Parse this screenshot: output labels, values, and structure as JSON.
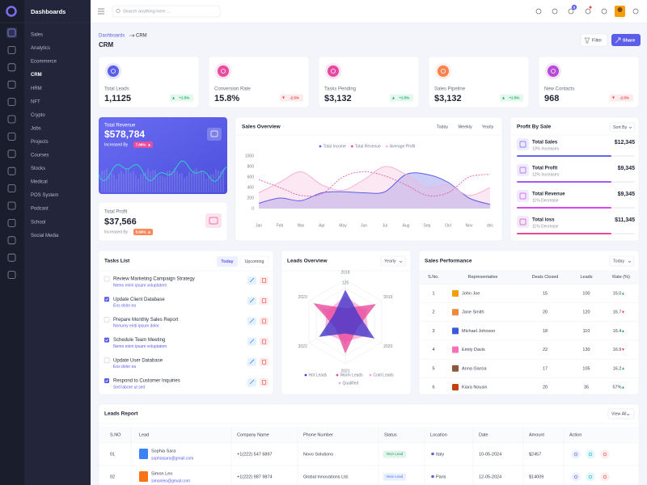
{
  "sidebar": {
    "title": "Dashboards",
    "items": [
      "Sales",
      "Analytics",
      "Ecommerce",
      "CRM",
      "HRM",
      "NFT",
      "Crypto",
      "Jobs",
      "Projects",
      "Courses",
      "Stocks",
      "Medical",
      "POS System",
      "Podcast",
      "School",
      "Social Media"
    ],
    "active": 3
  },
  "header": {
    "search_placeholder": "Search anything here ...",
    "cart_count": 5
  },
  "page": {
    "breadcrumb": [
      "Dashboards",
      "CRM"
    ],
    "title": "CRM",
    "filter": "Filter",
    "share": "Share"
  },
  "stats": [
    {
      "label": "Total Leads",
      "value": "1,1125",
      "change": "+2.5%",
      "trend": "up",
      "color": "#5b5ee8"
    },
    {
      "label": "Conversion Rate",
      "value": "15.8%",
      "change": "-2.5%",
      "trend": "down",
      "color": "#e84c9c"
    },
    {
      "label": "Tasks Pending",
      "value": "$3,132",
      "change": "+2.5%",
      "trend": "up",
      "color": "#e64aa0"
    },
    {
      "label": "Sales Pipeline",
      "value": "$3,132",
      "change": "+2.5%",
      "trend": "up",
      "color": "#f7834f"
    },
    {
      "label": "New Contacts",
      "value": "968",
      "change": "-2.5%",
      "trend": "down",
      "color": "#b84ad8"
    }
  ],
  "total_revenue": {
    "title": "Total Revenue",
    "value": "$578,784",
    "note": "Increased By",
    "badge": "7.66%"
  },
  "total_profit": {
    "title": "Total Profit",
    "value": "$37,566",
    "note": "Increased By",
    "badge": "5.66%"
  },
  "sales_overview": {
    "title": "Sales Overview",
    "tabs": [
      "Today",
      "Weekly",
      "Yearly"
    ],
    "chart": {
      "type": "line",
      "categories": [
        "Jan",
        "Feb",
        "Mar",
        "Apr",
        "May",
        "Jun",
        "Jul",
        "Aug",
        "Sep",
        "Oct",
        "Nov",
        "dec"
      ],
      "series": [
        {
          "name": "Total Income",
          "color": "#5b5ee8",
          "line_style": "solid",
          "area": true,
          "values": [
            100,
            200,
            150,
            300,
            320,
            300,
            320,
            650,
            650,
            500,
            200,
            80
          ]
        },
        {
          "name": "Total Revenue",
          "color": "#e84c9c",
          "line_style": "dashed",
          "area": false,
          "values": [
            550,
            400,
            250,
            280,
            600,
            700,
            620,
            450,
            250,
            300,
            600,
            650
          ]
        },
        {
          "name": "Average Profit",
          "color": "#f5b3d5",
          "line_style": "solid",
          "area": true,
          "values": [
            300,
            500,
            700,
            450,
            350,
            550,
            800,
            650,
            400,
            450,
            250,
            400
          ]
        }
      ],
      "ylim": [
        0,
        1000
      ],
      "yticks": [
        0,
        200,
        400,
        600,
        800,
        1000
      ]
    }
  },
  "profit_by_sale": {
    "title": "Profit By Sale",
    "sort": "Sort By",
    "items": [
      {
        "label": "Total Sales",
        "sub": "10% Increases",
        "value": "$12,345",
        "color": "#6366f1"
      },
      {
        "label": "Total Profit",
        "sub": "12% Increases",
        "value": "$9,345",
        "color": "#a855f7"
      },
      {
        "label": "Total Revenue",
        "sub": "11% Decrease",
        "value": "$9,345",
        "color": "#d946ef"
      },
      {
        "label": "Total loss",
        "sub": "11% Decrease",
        "value": "$11,345",
        "color": "#ec4899"
      }
    ]
  },
  "tasks": {
    "title": "Tasks List",
    "tabs": [
      "Today",
      "Upcoming"
    ],
    "active_tab": 0,
    "items": [
      {
        "title": "Review Marketing Campaign Strategy",
        "sub": "Nemo enim ipsam voluptatem",
        "done": false
      },
      {
        "title": "Update Client Database",
        "sub": "Eos dolor ea",
        "done": true
      },
      {
        "title": "Prepare Monthly Sales Report",
        "sub": "Nonumy eirdi ipsum dolor",
        "done": false
      },
      {
        "title": "Schedule Team Meeting",
        "sub": "Nemo enim ipsam voluptatem",
        "done": true
      },
      {
        "title": "Update User Database",
        "sub": "Eos dolor ea",
        "done": false
      },
      {
        "title": "Respond to Customer Inquiries",
        "sub": "Sed labore ut sed",
        "done": true
      }
    ]
  },
  "leads_overview": {
    "title": "Leads Overview",
    "filter": "Yearly",
    "chart": {
      "type": "radar",
      "categories": [
        "2018",
        "2019",
        "2020",
        "2021",
        "2022",
        "2023"
      ],
      "series": [
        {
          "name": "Hot Leads",
          "color": "#4338ca",
          "values": [
            95,
            45,
            100,
            35,
            90,
            40
          ]
        },
        {
          "name": "Warm Leads",
          "color": "#e84c9c",
          "values": [
            40,
            105,
            40,
            95,
            35,
            110
          ]
        },
        {
          "name": "Cold Leads",
          "color": "#f9a8d4",
          "values": [
            75,
            70,
            80,
            60,
            70,
            65
          ]
        },
        {
          "name": "Qualified",
          "color": "#f0abfc",
          "values": [
            30,
            80,
            25,
            70,
            30,
            85
          ]
        }
      ],
      "ylim": [
        0,
        125
      ],
      "yticks": [
        125
      ]
    }
  },
  "sales_performance": {
    "title": "Sales Performance",
    "filter": "Today",
    "columns": [
      "S.No.",
      "Representative",
      "Deals Closed",
      "Leads",
      "Rate (%)"
    ],
    "rows": [
      {
        "no": "1",
        "name": "John Joe",
        "deals": "15",
        "leads": "100",
        "rate": "15.0",
        "trend": "up"
      },
      {
        "no": "2",
        "name": "Jane Smith",
        "deals": "20",
        "leads": "120",
        "rate": "16.7",
        "trend": "down"
      },
      {
        "no": "3",
        "name": "Michael Johnson",
        "deals": "18",
        "leads": "110",
        "rate": "16.4",
        "trend": "up"
      },
      {
        "no": "4",
        "name": "Emily Davis",
        "deals": "22",
        "leads": "130",
        "rate": "16.9",
        "trend": "down"
      },
      {
        "no": "5",
        "name": "Anna Garcia",
        "deals": "17",
        "leads": "105",
        "rate": "16.2",
        "trend": "up"
      },
      {
        "no": "6",
        "name": "Kiara Nousin",
        "deals": "20",
        "leads": "35",
        "rate": "57%",
        "trend": "up"
      }
    ]
  },
  "leads_report": {
    "title": "Leads Report",
    "action": "View All",
    "columns": [
      "S.NO",
      "Lead",
      "Company Name",
      "Phone Number",
      "Status",
      "Location",
      "Date",
      "Amount",
      "Action"
    ],
    "rows": [
      {
        "no": "01",
        "name": "Sophia Sara",
        "email": "sophiasara@gmail.com",
        "phone": "+1(222) 547 6897",
        "company": "Novo Solutions",
        "status": "Won Lead",
        "status_color": "#1fa463",
        "location": "Italy",
        "date": "10-05-2024",
        "amount": "$2457"
      },
      {
        "no": "02",
        "name": "Simon Leo",
        "email": "simonleo@gmail.com",
        "phone": "+1(222) 987 9874",
        "company": "Global Innovations Ltd.",
        "status": "New Lead",
        "status_color": "#4a7bf7",
        "location": "Paris",
        "date": "12-05-2024",
        "amount": "$14009"
      }
    ]
  }
}
